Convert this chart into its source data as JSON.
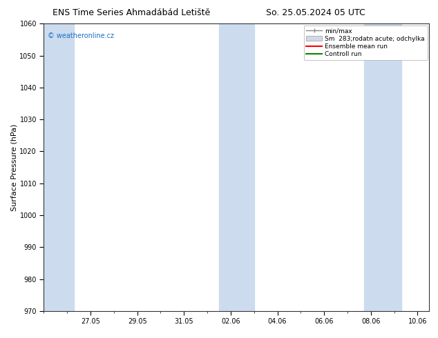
{
  "title_left": "ENS Time Series Ahmadábád Letiště",
  "title_right": "So. 25.05.2024 05 UTC",
  "ylabel": "Surface Pressure (hPa)",
  "ylim": [
    970,
    1060
  ],
  "yticks": [
    970,
    980,
    990,
    1000,
    1010,
    1020,
    1030,
    1040,
    1050,
    1060
  ],
  "xtick_labels": [
    "27.05",
    "29.05",
    "31.05",
    "02.06",
    "04.06",
    "06.06",
    "08.06",
    "10.06"
  ],
  "watermark": "© weatheronline.cz",
  "watermark_color": "#1a6fc4",
  "bg_color": "#ffffff",
  "plot_bg_color": "#ffffff",
  "shaded_band_color": "#ccdcee",
  "legend_items": [
    {
      "label": "min/max",
      "color": "#aaaaaa",
      "style": "minmax"
    },
    {
      "label": "Sm  283;rodatn acute; odchylka",
      "color": "#cccccc",
      "style": "band"
    },
    {
      "label": "Ensemble mean run",
      "color": "#ff0000",
      "style": "line"
    },
    {
      "label": "Controll run",
      "color": "#008800",
      "style": "line"
    }
  ],
  "shaded_intervals": [
    [
      0.0,
      1.3
    ],
    [
      7.5,
      9.0
    ],
    [
      13.7,
      15.3
    ]
  ],
  "x_tick_positions": [
    2,
    4,
    6,
    8,
    10,
    12,
    14,
    16
  ],
  "x_min": 0.0,
  "x_max": 16.5,
  "title_fontsize": 9,
  "tick_fontsize": 7,
  "ylabel_fontsize": 8,
  "watermark_fontsize": 7,
  "legend_fontsize": 6.5
}
